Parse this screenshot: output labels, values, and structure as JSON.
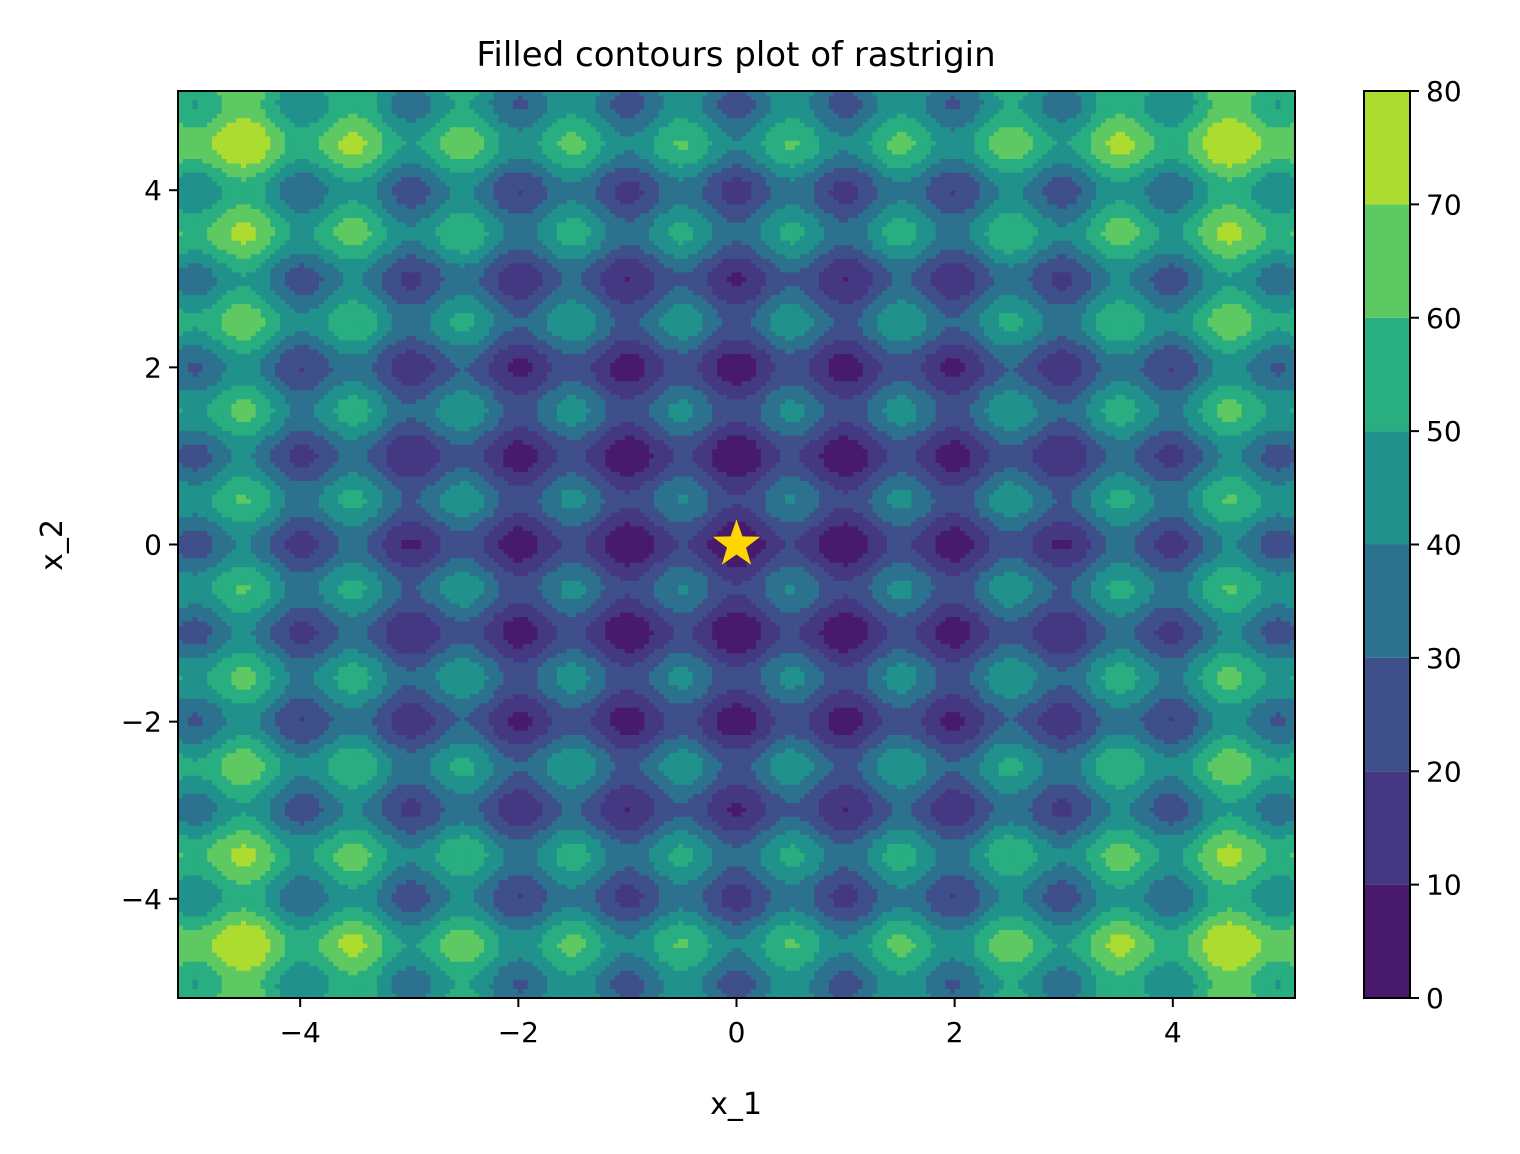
{
  "chart_data": {
    "type": "heatmap",
    "subtype": "filled-contour",
    "title": "Filled contours plot of rastrigin",
    "xlabel": "x_1",
    "ylabel": "x_2",
    "function": "rastrigin",
    "xlim": [
      -5.12,
      5.12
    ],
    "ylim": [
      -5.12,
      5.12
    ],
    "xticks": [
      -4,
      -2,
      0,
      2,
      4
    ],
    "yticks": [
      -4,
      -2,
      0,
      2,
      4
    ],
    "xtick_labels": [
      "−4",
      "−2",
      "0",
      "2",
      "4"
    ],
    "ytick_labels": [
      "−4",
      "−2",
      "0",
      "2",
      "4"
    ],
    "levels": [
      0,
      10,
      20,
      30,
      40,
      50,
      60,
      70,
      80
    ],
    "colorbar_tick_labels": [
      "0",
      "10",
      "20",
      "30",
      "40",
      "50",
      "60",
      "70",
      "80"
    ],
    "level_colors": [
      "#481a6c",
      "#453882",
      "#3e4f8a",
      "#2c728e",
      "#21918c",
      "#28ae80",
      "#5ec962",
      "#addc30",
      "#d8e219"
    ],
    "colormap": "viridis",
    "minimum_marker": {
      "x": 0,
      "y": 0,
      "shape": "star",
      "color": "#ffd700"
    }
  }
}
